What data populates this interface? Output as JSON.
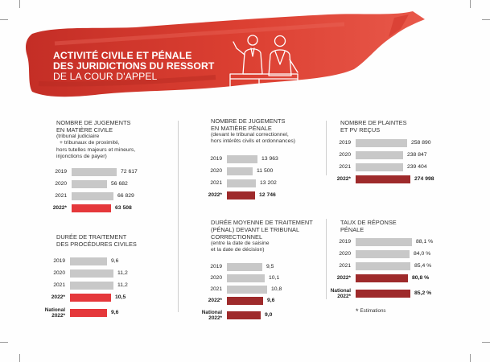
{
  "header": {
    "title_line1": "ACTIVITÉ CIVILE ET PÉNALE",
    "title_line2": "DES JURIDICTIONS DU RESSORT",
    "title_line3": "DE LA COUR D'APPEL"
  },
  "colors": {
    "banner_red": "#d63a2f",
    "banner_dark": "#b52a22",
    "bar_grey": "#c8c8c8",
    "civil_red": "#e5383b",
    "penal_red": "#9e2a2b"
  },
  "footnote": {
    "star": "*",
    "text": "Estimations"
  },
  "chart_data": [
    {
      "type": "bar",
      "title_lines": [
        "NOMBRE DE JUGEMENTS",
        "EN MATIÈRE CIVILE"
      ],
      "subtitle_lines": [
        "(tribunal judiciaire",
        "+ tribunaux de proximité,",
        "hors tutelles majeurs et mineurs,",
        "injonctions de payer)"
      ],
      "categories": [
        "2019",
        "2020",
        "2021",
        "2022*"
      ],
      "values": [
        72617,
        56682,
        66829,
        63508
      ],
      "labels": [
        "72 617",
        "56 682",
        "66 829",
        "63 508"
      ],
      "highlight": [
        3
      ],
      "ylim": [
        0,
        80000
      ]
    },
    {
      "type": "bar",
      "title_lines": [
        "DURÉE DE TRAITEMENT",
        "DES PROCÉDURES CIVILES"
      ],
      "subtitle_lines": [],
      "categories": [
        "2019",
        "2020",
        "2021",
        "2022*",
        "National 2022*"
      ],
      "values": [
        9.6,
        11.2,
        11.2,
        10.5,
        9.6
      ],
      "labels": [
        "9,6",
        "11,2",
        "11,2",
        "10,5",
        "9,6"
      ],
      "highlight": [
        3,
        4
      ],
      "ylim": [
        0,
        12
      ]
    },
    {
      "type": "bar",
      "title_lines": [
        "NOMBRE DE JUGEMENTS",
        "EN MATIÈRE PÉNALE"
      ],
      "subtitle_lines": [
        "(devant le tribunal correctionnel,",
        "hors intérêts civils et ordonnances)"
      ],
      "categories": [
        "2019",
        "2020",
        "2021",
        "2022*"
      ],
      "values": [
        13963,
        11500,
        13202,
        12746
      ],
      "labels": [
        "13 963",
        "11 500",
        "13 202",
        "12 746"
      ],
      "highlight": [
        3
      ],
      "ylim": [
        0,
        16000
      ]
    },
    {
      "type": "bar",
      "title_lines": [
        "DURÉE MOYENNE DE TRAITEMENT",
        "(PÉNAL) DEVANT LE TRIBUNAL",
        "CORRECTIONNEL"
      ],
      "subtitle_lines": [
        "(entre la date de saisine",
        "et la date de décision)"
      ],
      "categories": [
        "2019",
        "2020",
        "2021",
        "2022*",
        "National 2022*"
      ],
      "values": [
        9.5,
        10.1,
        10.8,
        9.6,
        9.0
      ],
      "labels": [
        "9,5",
        "10,1",
        "10,8",
        "9,6",
        "9,0"
      ],
      "highlight": [
        3,
        4
      ],
      "ylim": [
        0,
        12
      ]
    },
    {
      "type": "bar",
      "title_lines": [
        "NOMBRE DE PLAINTES",
        "ET PV REÇUS"
      ],
      "subtitle_lines": [],
      "categories": [
        "2019",
        "2020",
        "2021",
        "2022*"
      ],
      "values": [
        258890,
        238847,
        239404,
        274998
      ],
      "labels": [
        "258 890",
        "238 847",
        "239 404",
        "274 998"
      ],
      "highlight": [
        3
      ],
      "ylim": [
        0,
        290000
      ]
    },
    {
      "type": "bar",
      "title_lines": [
        "TAUX DE RÉPONSE",
        "PÉNALE"
      ],
      "subtitle_lines": [],
      "categories": [
        "2019",
        "2020",
        "2021",
        "2022*",
        "National 2022*"
      ],
      "values": [
        88.1,
        84.0,
        85.4,
        80.8,
        85.2
      ],
      "labels": [
        "88,1 %",
        "84,0 %",
        "85,4 %",
        "80,8 %",
        "85,2 %"
      ],
      "highlight": [
        3,
        4
      ],
      "ylim": [
        0,
        100
      ]
    }
  ]
}
